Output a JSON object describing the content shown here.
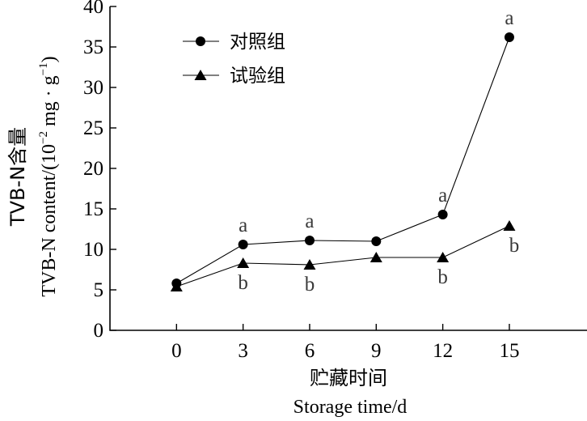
{
  "chart_data": {
    "type": "line",
    "x": [
      0,
      3,
      6,
      9,
      12,
      15
    ],
    "x_ticks": [
      "0",
      "3",
      "6",
      "9",
      "12",
      "15"
    ],
    "y_ticks": [
      "0",
      "5",
      "10",
      "15",
      "20",
      "25",
      "30",
      "35",
      "40"
    ],
    "xlabel": "贮藏时间",
    "xlabel_en": "Storage time/d",
    "ylabel": "TVB-N含量",
    "ylabel_en_prefix": "TVB-N content/(10",
    "ylabel_en_exp1": "−2",
    "ylabel_en_mid": " mg · g",
    "ylabel_en_exp2": "−1",
    "ylabel_en_suffix": ")",
    "xlim": [
      -3,
      18.5
    ],
    "ylim": [
      0,
      40
    ],
    "grid": false,
    "legend_position": "top-left",
    "series": [
      {
        "name": "对照组",
        "marker": "circle",
        "values": [
          5.8,
          10.6,
          11.1,
          11.0,
          14.3,
          36.2
        ],
        "labels": [
          "",
          "a",
          "a",
          "",
          "a",
          "a"
        ]
      },
      {
        "name": "试验组",
        "marker": "triangle",
        "values": [
          5.4,
          8.3,
          8.1,
          9.0,
          9.0,
          12.9
        ],
        "labels": [
          "",
          "b",
          "b",
          "",
          "b",
          "b"
        ]
      }
    ]
  }
}
